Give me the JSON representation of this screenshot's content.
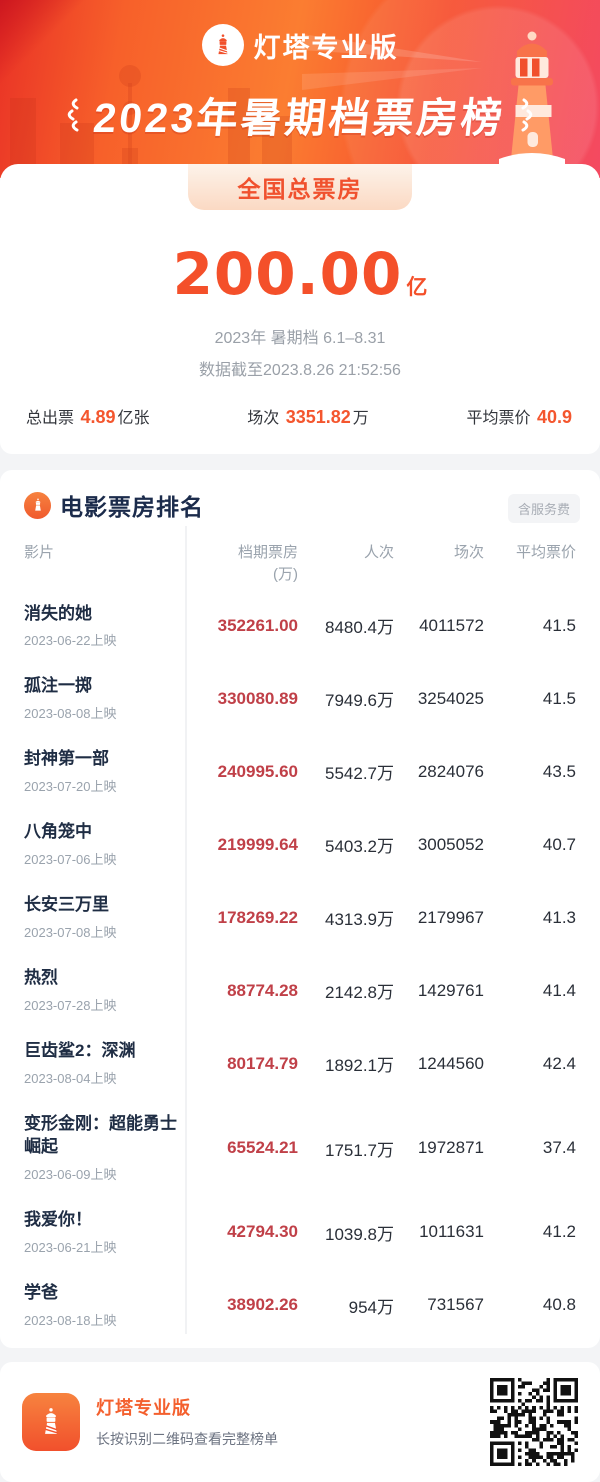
{
  "header": {
    "brand": "灯塔专业版",
    "title": "2023年暑期档票房榜"
  },
  "summary": {
    "badge": "全国总票房",
    "total": {
      "value": "200.00",
      "unit": "亿"
    },
    "period": "2023年 暑期档 6.1–8.31",
    "cutoff": "数据截至2023.8.26 21:52:56",
    "stats": [
      {
        "label": "总出票",
        "value": "4.89",
        "suffix": "亿张"
      },
      {
        "label": "场次",
        "value": "3351.82",
        "suffix": "万"
      },
      {
        "label": "平均票价",
        "value": "40.9",
        "suffix": ""
      }
    ]
  },
  "table": {
    "section_title": "电影票房排名",
    "service_fee_badge": "含服务费",
    "columns": [
      {
        "key": "film",
        "label": "影片",
        "sub": ""
      },
      {
        "key": "box",
        "label": "档期票房",
        "sub": "(万)"
      },
      {
        "key": "admissions",
        "label": "人次",
        "sub": ""
      },
      {
        "key": "shows",
        "label": "场次",
        "sub": ""
      },
      {
        "key": "avg_price",
        "label": "平均票价",
        "sub": ""
      }
    ],
    "rows": [
      {
        "title": "消失的她",
        "release": "2023-06-22上映",
        "box": "352261.00",
        "admissions": "8480.4万",
        "shows": "4011572",
        "avg_price": "41.5"
      },
      {
        "title": "孤注一掷",
        "release": "2023-08-08上映",
        "box": "330080.89",
        "admissions": "7949.6万",
        "shows": "3254025",
        "avg_price": "41.5"
      },
      {
        "title": "封神第一部",
        "release": "2023-07-20上映",
        "box": "240995.60",
        "admissions": "5542.7万",
        "shows": "2824076",
        "avg_price": "43.5"
      },
      {
        "title": "八角笼中",
        "release": "2023-07-06上映",
        "box": "219999.64",
        "admissions": "5403.2万",
        "shows": "3005052",
        "avg_price": "40.7"
      },
      {
        "title": "长安三万里",
        "release": "2023-07-08上映",
        "box": "178269.22",
        "admissions": "4313.9万",
        "shows": "2179967",
        "avg_price": "41.3"
      },
      {
        "title": "热烈",
        "release": "2023-07-28上映",
        "box": "88774.28",
        "admissions": "2142.8万",
        "shows": "1429761",
        "avg_price": "41.4"
      },
      {
        "title": "巨齿鲨2：深渊",
        "release": "2023-08-04上映",
        "box": "80174.79",
        "admissions": "1892.1万",
        "shows": "1244560",
        "avg_price": "42.4"
      },
      {
        "title": "变形金刚：超能勇士崛起",
        "release": "2023-06-09上映",
        "box": "65524.21",
        "admissions": "1751.7万",
        "shows": "1972871",
        "avg_price": "37.4"
      },
      {
        "title": "我爱你！",
        "release": "2023-06-21上映",
        "box": "42794.30",
        "admissions": "1039.8万",
        "shows": "1011631",
        "avg_price": "41.2"
      },
      {
        "title": "学爸",
        "release": "2023-08-18上映",
        "box": "38902.26",
        "admissions": "954万",
        "shows": "731567",
        "avg_price": "40.8"
      }
    ]
  },
  "footer": {
    "brand": "灯塔专业版",
    "tip": "长按识别二维码查看完整榜单"
  },
  "icons": {
    "brand_logo": "lighthouse-icon",
    "section_logo": "lighthouse-icon",
    "footer_logo": "lighthouse-icon",
    "qr": "qr-code"
  },
  "colors": {
    "accent_orange": "#F4502A",
    "box_office_red": "#C04048",
    "banner_red": "#F33B55",
    "banner_orange": "#FB7D31",
    "muted_gray": "#9AA3AD",
    "title_navy": "#1B2B4B"
  }
}
